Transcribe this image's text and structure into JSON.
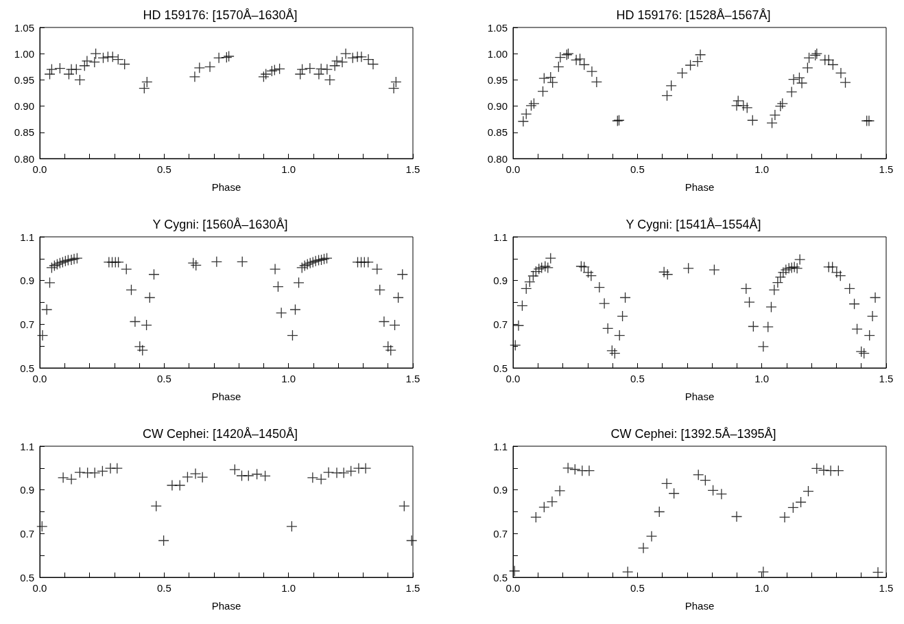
{
  "chart_data": [
    {
      "type": "scatter",
      "title": "HD 159176: [1570Å–1630Å]",
      "xlabel": "Phase",
      "color": "#000000",
      "marker": "cross",
      "xlim": [
        0,
        1.5
      ],
      "ylim": [
        0.8,
        1.05
      ],
      "xticks": [
        {
          "value": 0,
          "label": "0.0"
        },
        {
          "value": 0.1,
          "label": null
        },
        {
          "value": 0.2,
          "label": null
        },
        {
          "value": 0.3,
          "label": null
        },
        {
          "value": 0.4,
          "label": null
        },
        {
          "value": 0.5,
          "label": "0.5"
        },
        {
          "value": 0.6,
          "label": null
        },
        {
          "value": 0.7,
          "label": null
        },
        {
          "value": 0.8,
          "label": null
        },
        {
          "value": 0.9,
          "label": null
        },
        {
          "value": 1,
          "label": "1.0"
        },
        {
          "value": 1.1,
          "label": null
        },
        {
          "value": 1.2,
          "label": null
        },
        {
          "value": 1.3,
          "label": null
        },
        {
          "value": 1.4,
          "label": null
        },
        {
          "value": 1.5,
          "label": "1.5"
        }
      ],
      "yticks": [
        {
          "value": 0.8,
          "label": "0.80"
        },
        {
          "value": 0.85,
          "label": "0.85"
        },
        {
          "value": 0.9,
          "label": "0.90"
        },
        {
          "value": 0.95,
          "label": "0.95"
        },
        {
          "value": 1,
          "label": "1.00"
        },
        {
          "value": 1.05,
          "label": "1.05"
        }
      ],
      "x": [
        0.04,
        0.048,
        0.081,
        0.117,
        0.127,
        0.147,
        0.161,
        0.18,
        0.19,
        0.22,
        0.225,
        0.255,
        0.274,
        0.293,
        0.315,
        0.341,
        0.42,
        0.431,
        0.623,
        0.642,
        0.684,
        0.72,
        0.751,
        0.76,
        0.9,
        0.909,
        0.933,
        0.944,
        0.964,
        1.047,
        1.055,
        1.086,
        1.122,
        1.131,
        1.155,
        1.166,
        1.186,
        1.194,
        1.216,
        1.23,
        1.258,
        1.277,
        1.293,
        1.321,
        1.34,
        1.423,
        1.432
      ],
      "values": [
        0.961,
        0.97,
        0.972,
        0.961,
        0.97,
        0.97,
        0.95,
        0.977,
        0.986,
        0.984,
        1.0,
        0.992,
        0.994,
        0.994,
        0.989,
        0.98,
        0.934,
        0.946,
        0.956,
        0.973,
        0.975,
        0.992,
        0.993,
        0.995,
        0.956,
        0.961,
        0.967,
        0.969,
        0.971,
        0.961,
        0.97,
        0.972,
        0.961,
        0.971,
        0.97,
        0.95,
        0.977,
        0.986,
        0.984,
        1.0,
        0.992,
        0.994,
        0.994,
        0.989,
        0.98,
        0.934,
        0.946
      ]
    },
    {
      "type": "scatter",
      "title": "HD 159176: [1528Å–1567Å]",
      "xlabel": "Phase",
      "color": "#000000",
      "marker": "cross",
      "xlim": [
        0,
        1.5
      ],
      "ylim": [
        0.8,
        1.05
      ],
      "xticks": [
        {
          "value": 0,
          "label": "0.0"
        },
        {
          "value": 0.1,
          "label": null
        },
        {
          "value": 0.2,
          "label": null
        },
        {
          "value": 0.3,
          "label": null
        },
        {
          "value": 0.4,
          "label": null
        },
        {
          "value": 0.5,
          "label": "0.5"
        },
        {
          "value": 0.6,
          "label": null
        },
        {
          "value": 0.7,
          "label": null
        },
        {
          "value": 0.8,
          "label": null
        },
        {
          "value": 0.9,
          "label": null
        },
        {
          "value": 1,
          "label": "1.0"
        },
        {
          "value": 1.1,
          "label": null
        },
        {
          "value": 1.2,
          "label": null
        },
        {
          "value": 1.3,
          "label": null
        },
        {
          "value": 1.4,
          "label": null
        },
        {
          "value": 1.5,
          "label": "1.5"
        }
      ],
      "yticks": [
        {
          "value": 0.8,
          "label": "0.80"
        },
        {
          "value": 0.85,
          "label": "0.85"
        },
        {
          "value": 0.9,
          "label": "0.90"
        },
        {
          "value": 0.95,
          "label": "0.95"
        },
        {
          "value": 1,
          "label": "1.00"
        },
        {
          "value": 1.05,
          "label": "1.05"
        }
      ],
      "x": [
        0.041,
        0.053,
        0.073,
        0.084,
        0.12,
        0.125,
        0.151,
        0.159,
        0.183,
        0.19,
        0.216,
        0.222,
        0.254,
        0.269,
        0.286,
        0.317,
        0.336,
        0.42,
        0.426,
        0.619,
        0.636,
        0.68,
        0.713,
        0.742,
        0.753,
        0.899,
        0.905,
        0.926,
        0.941,
        0.963,
        1.041,
        1.053,
        1.075,
        1.083,
        1.12,
        1.128,
        1.151,
        1.161,
        1.184,
        1.19,
        1.215,
        1.221,
        1.254,
        1.269,
        1.286,
        1.318,
        1.336,
        1.422,
        1.431
      ],
      "values": [
        0.871,
        0.885,
        0.901,
        0.905,
        0.928,
        0.953,
        0.955,
        0.945,
        0.975,
        0.993,
        0.998,
        1.0,
        0.988,
        0.99,
        0.979,
        0.966,
        0.946,
        0.872,
        0.873,
        0.92,
        0.939,
        0.963,
        0.978,
        0.985,
        0.998,
        0.901,
        0.91,
        0.901,
        0.897,
        0.873,
        0.868,
        0.883,
        0.9,
        0.905,
        0.927,
        0.951,
        0.954,
        0.944,
        0.973,
        0.992,
        0.997,
        1.0,
        0.988,
        0.988,
        0.979,
        0.963,
        0.945,
        0.872,
        0.872
      ]
    },
    {
      "type": "scatter",
      "title": "Y Cygni: [1560Å–1630Å]",
      "xlabel": "Phase",
      "color": "#000000",
      "marker": "cross",
      "xlim": [
        0,
        1.5
      ],
      "ylim": [
        0.5,
        1.1
      ],
      "xticks": [
        {
          "value": 0,
          "label": "0.0"
        },
        {
          "value": 0.1,
          "label": null
        },
        {
          "value": 0.2,
          "label": null
        },
        {
          "value": 0.3,
          "label": null
        },
        {
          "value": 0.4,
          "label": null
        },
        {
          "value": 0.5,
          "label": "0.5"
        },
        {
          "value": 0.6,
          "label": null
        },
        {
          "value": 0.7,
          "label": null
        },
        {
          "value": 0.8,
          "label": null
        },
        {
          "value": 0.9,
          "label": null
        },
        {
          "value": 1,
          "label": "1.0"
        },
        {
          "value": 1.1,
          "label": null
        },
        {
          "value": 1.2,
          "label": null
        },
        {
          "value": 1.3,
          "label": null
        },
        {
          "value": 1.4,
          "label": null
        },
        {
          "value": 1.5,
          "label": "1.5"
        }
      ],
      "yticks": [
        0.5,
        {
          "value": 0.6,
          "label": null
        },
        0.7,
        {
          "value": 0.8,
          "label": null
        },
        0.9,
        {
          "value": 1,
          "label": null
        },
        1.1
      ],
      "x": [
        0.011,
        0.028,
        0.04,
        0.048,
        0.059,
        0.07,
        0.081,
        0.092,
        0.103,
        0.114,
        0.127,
        0.138,
        0.15,
        0.278,
        0.291,
        0.304,
        0.316,
        0.348,
        0.368,
        0.383,
        0.402,
        0.413,
        0.429,
        0.442,
        0.459,
        0.617,
        0.628,
        0.711,
        0.814,
        0.946,
        0.958,
        0.971,
        1.016,
        1.027,
        1.041,
        1.054,
        1.065,
        1.076,
        1.087,
        1.098,
        1.109,
        1.121,
        1.132,
        1.143,
        1.154,
        1.278,
        1.292,
        1.305,
        1.32,
        1.356,
        1.367,
        1.384,
        1.4,
        1.411,
        1.427,
        1.441,
        1.458
      ],
      "values": [
        0.649,
        0.767,
        0.89,
        0.959,
        0.968,
        0.974,
        0.98,
        0.984,
        0.989,
        0.993,
        0.995,
        0.999,
        1.002,
        0.984,
        0.984,
        0.984,
        0.984,
        0.952,
        0.857,
        0.712,
        0.598,
        0.581,
        0.696,
        0.822,
        0.928,
        0.98,
        0.97,
        0.986,
        0.986,
        0.952,
        0.872,
        0.752,
        0.649,
        0.767,
        0.89,
        0.959,
        0.968,
        0.974,
        0.98,
        0.984,
        0.989,
        0.993,
        0.995,
        0.999,
        1.002,
        0.984,
        0.984,
        0.984,
        0.984,
        0.952,
        0.857,
        0.712,
        0.598,
        0.581,
        0.696,
        0.822,
        0.928
      ]
    },
    {
      "type": "scatter",
      "title": "Y Cygni: [1541Å–1554Å]",
      "xlabel": "Phase",
      "color": "#000000",
      "marker": "cross",
      "xlim": [
        0,
        1.5
      ],
      "ylim": [
        0.5,
        1.1
      ],
      "xticks": [
        {
          "value": 0,
          "label": "0.0"
        },
        {
          "value": 0.1,
          "label": null
        },
        {
          "value": 0.2,
          "label": null
        },
        {
          "value": 0.3,
          "label": null
        },
        {
          "value": 0.4,
          "label": null
        },
        {
          "value": 0.5,
          "label": "0.5"
        },
        {
          "value": 0.6,
          "label": null
        },
        {
          "value": 0.7,
          "label": null
        },
        {
          "value": 0.8,
          "label": null
        },
        {
          "value": 0.9,
          "label": null
        },
        {
          "value": 1,
          "label": "1.0"
        },
        {
          "value": 1.1,
          "label": null
        },
        {
          "value": 1.2,
          "label": null
        },
        {
          "value": 1.3,
          "label": null
        },
        {
          "value": 1.4,
          "label": null
        },
        {
          "value": 1.5,
          "label": "1.5"
        }
      ],
      "yticks": [
        0.5,
        {
          "value": 0.6,
          "label": null
        },
        0.7,
        {
          "value": 0.8,
          "label": null
        },
        0.9,
        {
          "value": 1,
          "label": null
        },
        1.1
      ],
      "x": [
        0.009,
        0.022,
        0.037,
        0.053,
        0.067,
        0.081,
        0.092,
        0.104,
        0.115,
        0.129,
        0.14,
        0.151,
        0.274,
        0.286,
        0.302,
        0.314,
        0.347,
        0.367,
        0.381,
        0.398,
        0.409,
        0.428,
        0.44,
        0.451,
        0.607,
        0.621,
        0.705,
        0.809,
        0.937,
        0.95,
        0.966,
        1.006,
        1.025,
        1.038,
        1.05,
        1.064,
        1.075,
        1.086,
        1.097,
        1.109,
        1.12,
        1.131,
        1.142,
        1.153,
        1.269,
        1.284,
        1.301,
        1.316,
        1.353,
        1.372,
        1.383,
        1.4,
        1.411,
        1.433,
        1.445,
        1.456
      ],
      "values": [
        0.604,
        0.694,
        0.785,
        0.863,
        0.894,
        0.921,
        0.941,
        0.953,
        0.959,
        0.965,
        0.959,
        1.002,
        0.965,
        0.962,
        0.937,
        0.922,
        0.869,
        0.795,
        0.681,
        0.579,
        0.567,
        0.649,
        0.737,
        0.822,
        0.939,
        0.928,
        0.956,
        0.949,
        0.863,
        0.801,
        0.69,
        0.598,
        0.688,
        0.779,
        0.857,
        0.891,
        0.916,
        0.937,
        0.949,
        0.956,
        0.959,
        0.962,
        0.956,
        0.996,
        0.962,
        0.962,
        0.937,
        0.922,
        0.863,
        0.793,
        0.678,
        0.575,
        0.567,
        0.649,
        0.737,
        0.822
      ]
    },
    {
      "type": "scatter",
      "title": "CW Cephei: [1420Å–1450Å]",
      "xlabel": "Phase",
      "color": "#000000",
      "marker": "cross",
      "xlim": [
        0,
        1.5
      ],
      "ylim": [
        0.5,
        1.1
      ],
      "xticks": [
        {
          "value": 0,
          "label": "0.0"
        },
        {
          "value": 0.1,
          "label": null
        },
        {
          "value": 0.2,
          "label": null
        },
        {
          "value": 0.3,
          "label": null
        },
        {
          "value": 0.4,
          "label": null
        },
        {
          "value": 0.5,
          "label": "0.5"
        },
        {
          "value": 0.6,
          "label": null
        },
        {
          "value": 0.7,
          "label": null
        },
        {
          "value": 0.8,
          "label": null
        },
        {
          "value": 0.9,
          "label": null
        },
        {
          "value": 1,
          "label": "1.0"
        },
        {
          "value": 1.1,
          "label": null
        },
        {
          "value": 1.2,
          "label": null
        },
        {
          "value": 1.3,
          "label": null
        },
        {
          "value": 1.4,
          "label": null
        },
        {
          "value": 1.5,
          "label": "1.5"
        }
      ],
      "yticks": [
        0.5,
        {
          "value": 0.6,
          "label": null
        },
        0.7,
        {
          "value": 0.8,
          "label": null
        },
        0.9,
        {
          "value": 1,
          "label": null
        },
        1.1
      ],
      "x": [
        0.009,
        0.094,
        0.127,
        0.161,
        0.192,
        0.221,
        0.252,
        0.284,
        0.311,
        0.468,
        0.498,
        0.532,
        0.563,
        0.594,
        0.626,
        0.654,
        0.784,
        0.812,
        0.839,
        0.873,
        0.906,
        1.013,
        1.097,
        1.131,
        1.161,
        1.194,
        1.222,
        1.251,
        1.282,
        1.31,
        1.465,
        1.495
      ],
      "values": [
        0.733,
        0.956,
        0.949,
        0.98,
        0.978,
        0.978,
        0.986,
        0.999,
        0.999,
        0.826,
        0.668,
        0.921,
        0.921,
        0.959,
        0.974,
        0.958,
        0.993,
        0.965,
        0.965,
        0.972,
        0.964,
        0.733,
        0.956,
        0.949,
        0.98,
        0.978,
        0.978,
        0.986,
        0.999,
        0.999,
        0.826,
        0.668
      ]
    },
    {
      "type": "scatter",
      "title": "CW Cephei: [1392.5Å–1395Å]",
      "xlabel": "Phase",
      "color": "#000000",
      "marker": "cross",
      "xlim": [
        0,
        1.5
      ],
      "ylim": [
        0.5,
        1.1
      ],
      "xticks": [
        {
          "value": 0,
          "label": "0.0"
        },
        {
          "value": 0.1,
          "label": null
        },
        {
          "value": 0.2,
          "label": null
        },
        {
          "value": 0.3,
          "label": null
        },
        {
          "value": 0.4,
          "label": null
        },
        {
          "value": 0.5,
          "label": "0.5"
        },
        {
          "value": 0.6,
          "label": null
        },
        {
          "value": 0.7,
          "label": null
        },
        {
          "value": 0.8,
          "label": null
        },
        {
          "value": 0.9,
          "label": null
        },
        {
          "value": 1,
          "label": "1.0"
        },
        {
          "value": 1.1,
          "label": null
        },
        {
          "value": 1.2,
          "label": null
        },
        {
          "value": 1.3,
          "label": null
        },
        {
          "value": 1.4,
          "label": null
        },
        {
          "value": 1.5,
          "label": "1.5"
        }
      ],
      "yticks": [
        0.5,
        {
          "value": 0.6,
          "label": null
        },
        0.7,
        {
          "value": 0.8,
          "label": null
        },
        0.9,
        {
          "value": 1,
          "label": null
        },
        1.1
      ],
      "x": [
        0.006,
        0.092,
        0.125,
        0.157,
        0.188,
        0.221,
        0.249,
        0.278,
        0.306,
        0.461,
        0.524,
        0.557,
        0.588,
        0.618,
        0.647,
        0.745,
        0.773,
        0.804,
        0.838,
        0.899,
        1.006,
        1.092,
        1.126,
        1.157,
        1.187,
        1.221,
        1.249,
        1.277,
        1.308,
        1.467
      ],
      "values": [
        0.529,
        0.775,
        0.821,
        0.846,
        0.896,
        1.0,
        0.994,
        0.988,
        0.988,
        0.525,
        0.634,
        0.688,
        0.8,
        0.929,
        0.884,
        0.969,
        0.944,
        0.898,
        0.881,
        0.778,
        0.525,
        0.775,
        0.819,
        0.844,
        0.894,
        0.998,
        0.99,
        0.988,
        0.988,
        0.523
      ]
    }
  ]
}
